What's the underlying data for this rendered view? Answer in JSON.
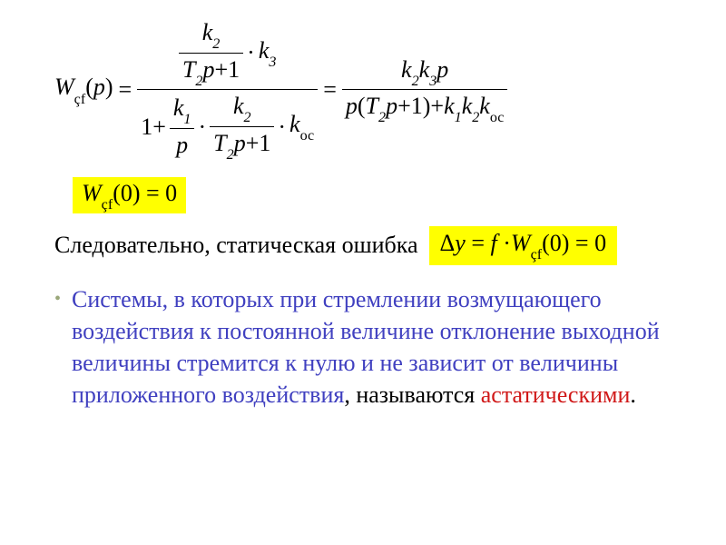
{
  "eq": {
    "lhs": {
      "W": "W",
      "cf": "çf",
      "arg": "p"
    },
    "mid": {
      "top_k2": "k",
      "top_k2_sub": "2",
      "top_T2": "T",
      "top_T2_sub": "2",
      "top_p": "p",
      "top_plus1": "+1",
      "top_k3": "k",
      "top_k3_sub": "3",
      "bot_1plus": "1+",
      "bot_k1": "k",
      "bot_k1_sub": "1",
      "bot_p": "p",
      "bot_k2": "k",
      "bot_k2_sub": "2",
      "bot_T2": "T",
      "bot_T2_sub": "2",
      "bot_p2": "p",
      "bot_plus1": "+1",
      "bot_koc": "k",
      "bot_koc_sub": "ос"
    },
    "rhs": {
      "num_k2": "k",
      "num_k2_sub": "2",
      "num_k3": "k",
      "num_k3_sub": "3",
      "num_p": "p",
      "den_p": "p",
      "den_T2": "T",
      "den_T2_sub": "2",
      "den_p2": "p",
      "den_plus1": "+1",
      "den_k1": "k",
      "den_k1_sub": "1",
      "den_k2": "k",
      "den_k2_sub": "2",
      "den_koc": "k",
      "den_koc_sub": "ос"
    }
  },
  "hl1": {
    "W": "W",
    "cf": "çf",
    "zero": "(0) = 0"
  },
  "line2_text": "Следовательно, статическая ошибка",
  "hl2": {
    "delta": "Δ",
    "y": "y",
    "eq": " = ",
    "f": " f ",
    "dot": "·",
    "W": "W",
    "cf": "çf",
    "zero": "(0) = 0"
  },
  "bullet_glyph": "•",
  "para": {
    "blue": "Системы, в которых при стремлении возмущающего воздействия к постоянной величине отклонение выходной величины стремится к нулю и не зависит от величины приложенного воздействия",
    "comma": ", называются ",
    "red": "астатическими",
    "dot": "."
  },
  "colors": {
    "highlight": "#ffff00",
    "blue_text": "#4040c0",
    "red_text": "#d01818",
    "bullet": "#9aa77a",
    "text": "#000000",
    "bg": "#ffffff"
  },
  "fontsize_main": 26
}
